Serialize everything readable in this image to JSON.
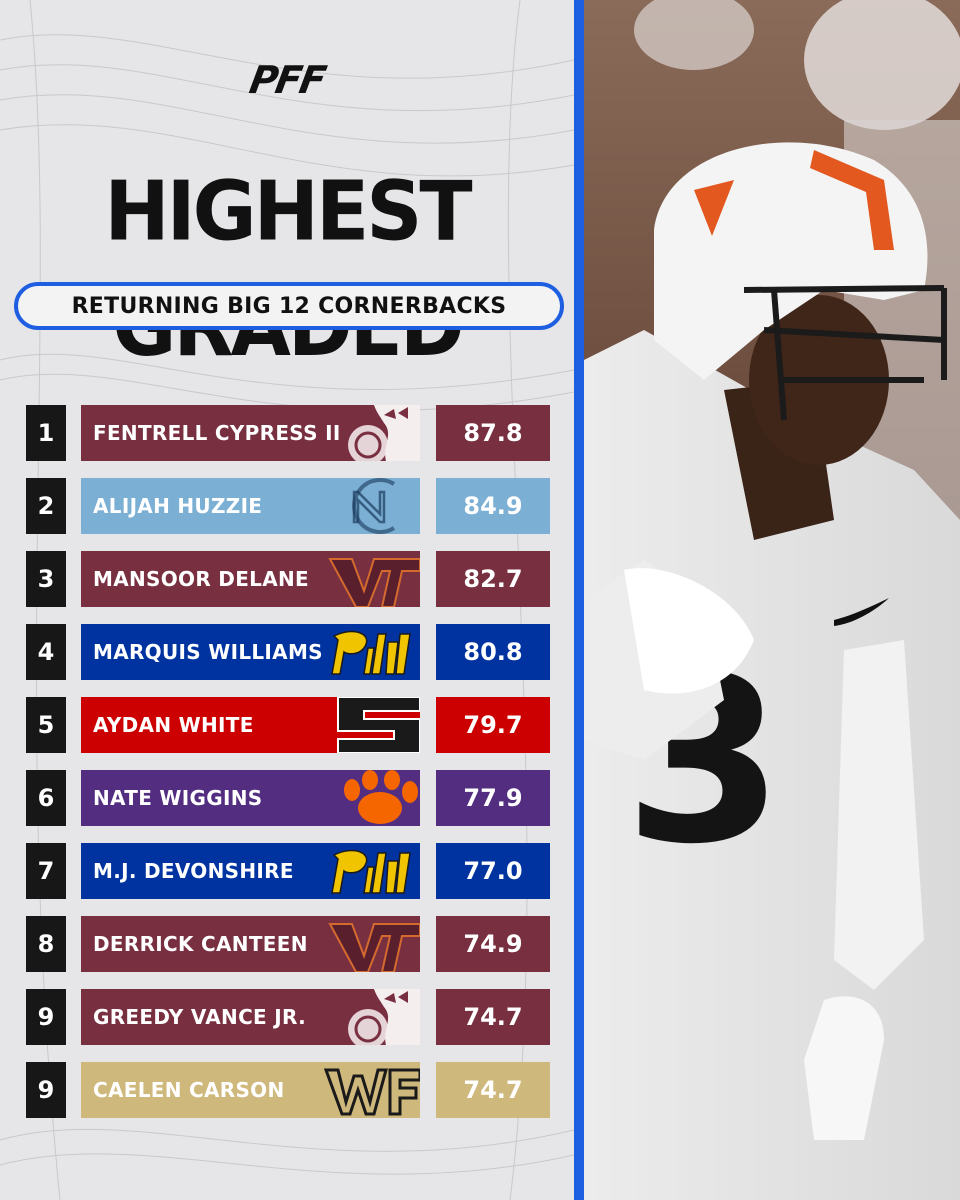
{
  "brand": {
    "logo_text": "PFF"
  },
  "header": {
    "title": "HIGHEST GRADED",
    "subtitle": "RETURNING BIG 12 CORNERBACKS"
  },
  "colors": {
    "accent_blue": "#1d5fe0",
    "rank_bg": "#171717",
    "maroon": "#782f40",
    "carolina_blue": "#7bafd4",
    "pitt_blue": "#0033a0",
    "nc_state_red": "#cc0000",
    "clemson_purple": "#522d80",
    "wake_gold": "#cfb87c"
  },
  "rows": [
    {
      "rank": "1",
      "name": "FENTRELL CYPRESS II",
      "grade": "87.8",
      "team_icon": "seminole-head-icon",
      "color": "#782f40"
    },
    {
      "rank": "2",
      "name": "ALIJAH HUZZIE",
      "grade": "84.9",
      "team_icon": "nc-monogram-icon",
      "color": "#7bafd4"
    },
    {
      "rank": "3",
      "name": "MANSOOR DELANE",
      "grade": "82.7",
      "team_icon": "vt-monogram-icon",
      "color": "#782f40"
    },
    {
      "rank": "4",
      "name": "MARQUIS WILLIAMS",
      "grade": "80.8",
      "team_icon": "pitt-script-icon",
      "color": "#0033a0"
    },
    {
      "rank": "5",
      "name": "AYDAN WHITE",
      "grade": "79.7",
      "team_icon": "ncstate-block-s-icon",
      "color": "#cc0000"
    },
    {
      "rank": "6",
      "name": "NATE WIGGINS",
      "grade": "77.9",
      "team_icon": "tiger-paw-icon",
      "color": "#522d80"
    },
    {
      "rank": "7",
      "name": "M.J. DEVONSHIRE",
      "grade": "77.0",
      "team_icon": "pitt-script-icon",
      "color": "#0033a0"
    },
    {
      "rank": "8",
      "name": "DERRICK CANTEEN",
      "grade": "74.9",
      "team_icon": "vt-monogram-icon",
      "color": "#782f40"
    },
    {
      "rank": "9",
      "name": "GREEDY VANCE JR.",
      "grade": "74.7",
      "team_icon": "seminole-head-icon",
      "color": "#782f40"
    },
    {
      "rank": "9",
      "name": "CAELEN CARSON",
      "grade": "74.7",
      "team_icon": "wf-monogram-icon",
      "color": "#cfb87c"
    }
  ],
  "photo": {
    "subject": "football-player-photo",
    "jersey_number": "3"
  }
}
